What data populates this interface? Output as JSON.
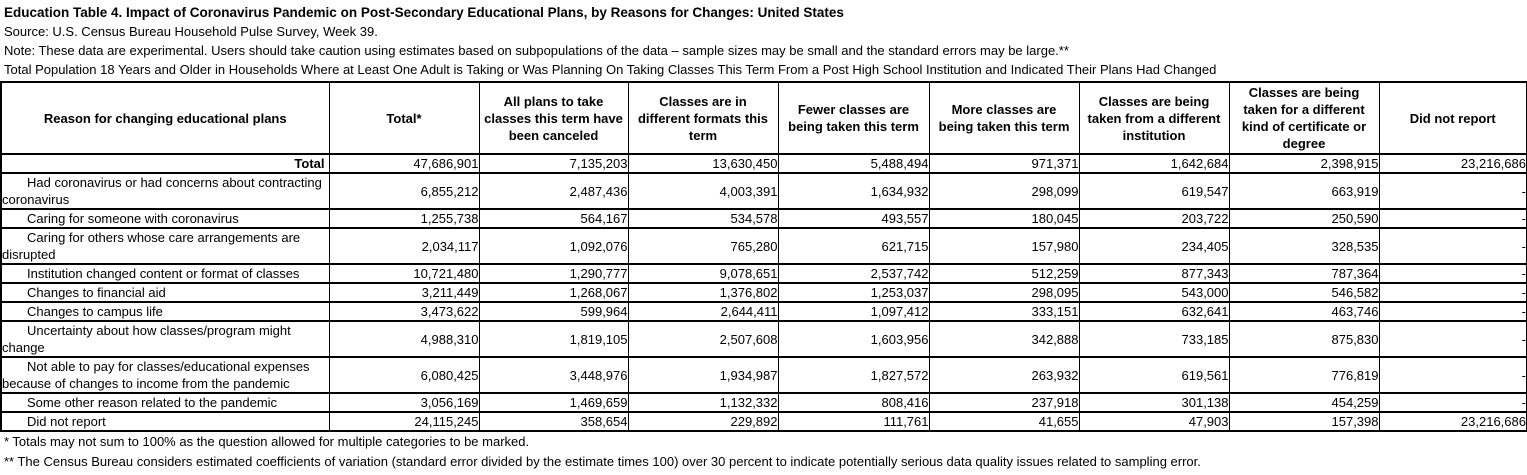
{
  "header": {
    "title": "Education Table 4. Impact of Coronavirus Pandemic on Post-Secondary Educational Plans, by Reasons for Changes: United States",
    "source": "Source: U.S. Census Bureau Household Pulse Survey, Week 39.",
    "note": "Note: These data are experimental. Users should take caution using estimates based on subpopulations of the data – sample sizes may be small and the standard errors may be large.**",
    "population": "Total Population 18 Years and Older in Households Where at Least One Adult is Taking or Was Planning On Taking Classes This Term From a Post High School Institution and Indicated Their Plans Had Changed"
  },
  "table": {
    "columns": [
      "Reason for changing educational plans",
      "Total*",
      "All plans to take classes this term have been canceled",
      "Classes are in different formats this term",
      "Fewer classes are being taken this term",
      "More classes are being taken this term",
      "Classes are being taken from a different institution",
      "Classes are being taken for a different kind of certificate or degree",
      "Did not report"
    ],
    "rows": [
      {
        "label": "Total",
        "is_total": true,
        "values": [
          "47,686,901",
          "7,135,203",
          "13,630,450",
          "5,488,494",
          "971,371",
          "1,642,684",
          "2,398,915",
          "23,216,686"
        ]
      },
      {
        "label": "Had coronavirus or had concerns about contracting coronavirus",
        "values": [
          "6,855,212",
          "2,487,436",
          "4,003,391",
          "1,634,932",
          "298,099",
          "619,547",
          "663,919",
          "-"
        ]
      },
      {
        "label": "Caring for someone with coronavirus",
        "values": [
          "1,255,738",
          "564,167",
          "534,578",
          "493,557",
          "180,045",
          "203,722",
          "250,590",
          "-"
        ]
      },
      {
        "label": "Caring for others whose care arrangements are disrupted",
        "values": [
          "2,034,117",
          "1,092,076",
          "765,280",
          "621,715",
          "157,980",
          "234,405",
          "328,535",
          "-"
        ]
      },
      {
        "label": "Institution changed content or format of classes",
        "values": [
          "10,721,480",
          "1,290,777",
          "9,078,651",
          "2,537,742",
          "512,259",
          "877,343",
          "787,364",
          "-"
        ]
      },
      {
        "label": "Changes to financial aid",
        "values": [
          "3,211,449",
          "1,268,067",
          "1,376,802",
          "1,253,037",
          "298,095",
          "543,000",
          "546,582",
          "-"
        ]
      },
      {
        "label": "Changes to campus life",
        "values": [
          "3,473,622",
          "599,964",
          "2,644,411",
          "1,097,412",
          "333,151",
          "632,641",
          "463,746",
          "-"
        ]
      },
      {
        "label": "Uncertainty about how classes/program might change",
        "values": [
          "4,988,310",
          "1,819,105",
          "2,507,608",
          "1,603,956",
          "342,888",
          "733,185",
          "875,830",
          "-"
        ]
      },
      {
        "label": "Not able to pay for classes/educational expenses because of changes to income from the pandemic",
        "values": [
          "6,080,425",
          "3,448,976",
          "1,934,987",
          "1,827,572",
          "263,932",
          "619,561",
          "776,819",
          "-"
        ]
      },
      {
        "label": "Some other reason related to the pandemic",
        "values": [
          "3,056,169",
          "1,469,659",
          "1,132,332",
          "808,416",
          "237,918",
          "301,138",
          "454,259",
          "-"
        ]
      },
      {
        "label": "Did not report",
        "values": [
          "24,115,245",
          "358,654",
          "229,892",
          "111,761",
          "41,655",
          "47,903",
          "157,398",
          "23,216,686"
        ]
      }
    ]
  },
  "footnotes": [
    "* Totals may not sum to 100% as the question allowed for multiple categories to be marked.",
    "** The Census Bureau considers estimated coefficients of variation (standard error divided by the estimate times 100) over 30 percent to indicate potentially serious data quality issues related to sampling error."
  ]
}
